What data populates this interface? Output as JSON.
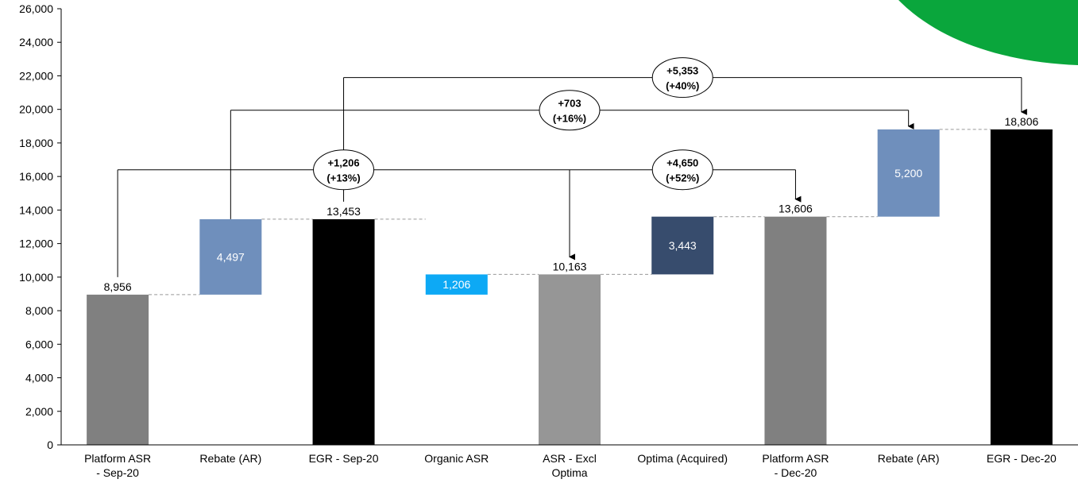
{
  "brand_accent": "#0aa63c",
  "chart_data": {
    "type": "waterfall",
    "ylim": [
      0,
      26000
    ],
    "yticks": [
      0,
      2000,
      4000,
      6000,
      8000,
      10000,
      12000,
      14000,
      16000,
      18000,
      20000,
      22000,
      24000,
      26000
    ],
    "ytick_labels": [
      "0",
      "2,000",
      "4,000",
      "6,000",
      "8,000",
      "10,000",
      "12,000",
      "14,000",
      "16,000",
      "18,000",
      "20,000",
      "22,000",
      "24,000",
      "26,000"
    ],
    "bars": [
      {
        "category": [
          "Platform ASR",
          "- Sep-20"
        ],
        "base": 0,
        "value": 8956,
        "label": "8,956",
        "color": "#808080",
        "label_pos": "above"
      },
      {
        "category": [
          "Rebate (AR)"
        ],
        "base": 8956,
        "value": 4497,
        "label": "4,497",
        "color": "#6f8fbc",
        "label_pos": "inside"
      },
      {
        "category": [
          "EGR - Sep-20"
        ],
        "base": 0,
        "value": 13453,
        "label": "13,453",
        "color": "#000000",
        "label_pos": "above"
      },
      {
        "category": [
          "Organic ASR"
        ],
        "base": 8956,
        "value": 1206,
        "label": "1,206",
        "color": "#0da9f5",
        "label_pos": "inside"
      },
      {
        "category": [
          "ASR - Excl",
          "Optima"
        ],
        "base": 0,
        "value": 10163,
        "label": "10,163",
        "color": "#969696",
        "label_pos": "above"
      },
      {
        "category": [
          "Optima (Acquired)"
        ],
        "base": 10163,
        "value": 3443,
        "label": "3,443",
        "color": "#374c6d",
        "label_pos": "inside"
      },
      {
        "category": [
          "Platform ASR",
          "- Dec-20"
        ],
        "base": 0,
        "value": 13606,
        "label": "13,606",
        "color": "#808080",
        "label_pos": "above"
      },
      {
        "category": [
          "Rebate (AR)"
        ],
        "base": 13606,
        "value": 5200,
        "label": "5,200",
        "color": "#6f8fbc",
        "label_pos": "inside"
      },
      {
        "category": [
          "EGR - Dec-20"
        ],
        "base": 0,
        "value": 18806,
        "label": "18,806",
        "color": "#000000",
        "label_pos": "above"
      }
    ],
    "annotations": [
      {
        "text": [
          "+1,206",
          "(+13%)"
        ],
        "from": 0,
        "to": 4,
        "level": 16400
      },
      {
        "text": [
          "+4,650",
          "(+52%)"
        ],
        "from": 4,
        "to": 6,
        "level": 16400
      },
      {
        "text": [
          "+703",
          "(+16%)"
        ],
        "from": 1,
        "to": 7,
        "level": 19950
      },
      {
        "text": [
          "+5,353",
          "(+40%)"
        ],
        "from": 2,
        "to": 8,
        "level": 21900
      }
    ]
  }
}
